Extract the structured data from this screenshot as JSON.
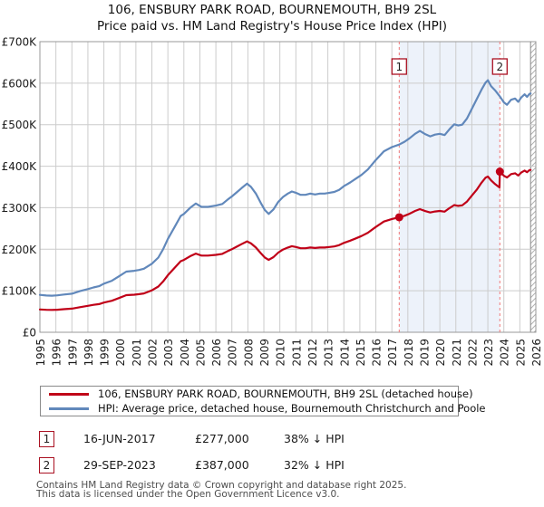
{
  "title": {
    "line1": "106, ENSBURY PARK ROAD, BOURNEMOUTH, BH9 2SL",
    "line2": "Price paid vs. HM Land Registry's House Price Index (HPI)"
  },
  "colors": {
    "property_line": "#c00018",
    "hpi_line": "#6188bb",
    "grid": "#cccccc",
    "plot_border": "#999999",
    "shaded_band": "#edf2fa",
    "dashed_marker": "#f07878",
    "marker_box_border": "#aa1122",
    "hatch_line": "#b0b0b0"
  },
  "y_axis": {
    "labels": [
      "£700K",
      "£600K",
      "£500K",
      "£400K",
      "£300K",
      "£200K",
      "£100K",
      "£0"
    ],
    "values": [
      700000,
      600000,
      500000,
      400000,
      300000,
      200000,
      100000,
      0
    ],
    "max": 700000,
    "min": 0
  },
  "x_axis": {
    "labels": [
      "1995",
      "1996",
      "1997",
      "1998",
      "1999",
      "2000",
      "2001",
      "2002",
      "2003",
      "2004",
      "2005",
      "2006",
      "2007",
      "2008",
      "2009",
      "2010",
      "2011",
      "2012",
      "2013",
      "2014",
      "2015",
      "2016",
      "2017",
      "2018",
      "2019",
      "2020",
      "2021",
      "2022",
      "2023",
      "2024",
      "2025",
      "2026"
    ],
    "start_year": 1995,
    "end_year": 2026
  },
  "legend": {
    "items": [
      {
        "label": "106, ENSBURY PARK ROAD, BOURNEMOUTH, BH9 2SL (detached house)",
        "color": "#c00018"
      },
      {
        "label": "HPI: Average price, detached house, Bournemouth Christchurch and Poole",
        "color": "#6188bb"
      }
    ]
  },
  "chart_data": {
    "type": "line",
    "x_unit": "decimal_year",
    "y_unit": "GBP",
    "xlim": [
      1995,
      2026
    ],
    "ylim": [
      0,
      700000
    ],
    "grid": true,
    "shaded_region": {
      "from": 2017.46,
      "to": 2023.75
    },
    "hatched_region": {
      "from": 2025.67,
      "to": 2026.0
    },
    "series": [
      {
        "name": "HPI: Average price, detached house, Bournemouth Christchurch and Poole",
        "color": "#6188bb",
        "points": [
          [
            1995.0,
            90000
          ],
          [
            1995.4,
            88500
          ],
          [
            1995.75,
            88000
          ],
          [
            1996.1,
            89000
          ],
          [
            1996.5,
            91000
          ],
          [
            1997.0,
            93000
          ],
          [
            1997.5,
            99000
          ],
          [
            1998.0,
            104000
          ],
          [
            1998.35,
            108000
          ],
          [
            1998.7,
            111000
          ],
          [
            1999.0,
            117000
          ],
          [
            1999.5,
            124000
          ],
          [
            2000.0,
            136000
          ],
          [
            2000.4,
            146000
          ],
          [
            2000.9,
            148000
          ],
          [
            2001.2,
            150000
          ],
          [
            2001.5,
            153000
          ],
          [
            2002.0,
            165000
          ],
          [
            2002.4,
            180000
          ],
          [
            2002.7,
            200000
          ],
          [
            2003.0,
            225000
          ],
          [
            2003.4,
            252000
          ],
          [
            2003.8,
            280000
          ],
          [
            2004.0,
            285000
          ],
          [
            2004.4,
            300000
          ],
          [
            2004.75,
            310000
          ],
          [
            2005.1,
            302000
          ],
          [
            2005.5,
            302000
          ],
          [
            2006.0,
            305000
          ],
          [
            2006.4,
            309000
          ],
          [
            2006.75,
            320000
          ],
          [
            2007.0,
            327000
          ],
          [
            2007.3,
            337000
          ],
          [
            2007.6,
            347000
          ],
          [
            2007.95,
            358000
          ],
          [
            2008.2,
            350000
          ],
          [
            2008.5,
            334000
          ],
          [
            2008.8,
            312000
          ],
          [
            2009.05,
            295000
          ],
          [
            2009.3,
            285000
          ],
          [
            2009.6,
            296000
          ],
          [
            2009.9,
            314000
          ],
          [
            2010.2,
            326000
          ],
          [
            2010.5,
            334000
          ],
          [
            2010.75,
            339000
          ],
          [
            2011.0,
            336000
          ],
          [
            2011.3,
            331000
          ],
          [
            2011.6,
            331000
          ],
          [
            2011.9,
            334000
          ],
          [
            2012.2,
            332000
          ],
          [
            2012.5,
            334000
          ],
          [
            2012.8,
            334000
          ],
          [
            2013.1,
            336000
          ],
          [
            2013.4,
            338000
          ],
          [
            2013.7,
            343000
          ],
          [
            2014.0,
            352000
          ],
          [
            2014.4,
            361000
          ],
          [
            2014.75,
            370000
          ],
          [
            2015.1,
            379000
          ],
          [
            2015.5,
            392000
          ],
          [
            2016.0,
            415000
          ],
          [
            2016.5,
            436000
          ],
          [
            2017.0,
            446000
          ],
          [
            2017.46,
            452000
          ],
          [
            2017.8,
            459000
          ],
          [
            2018.1,
            467000
          ],
          [
            2018.45,
            478000
          ],
          [
            2018.75,
            485000
          ],
          [
            2019.1,
            477000
          ],
          [
            2019.4,
            472000
          ],
          [
            2019.7,
            476000
          ],
          [
            2020.0,
            478000
          ],
          [
            2020.3,
            475000
          ],
          [
            2020.6,
            489000
          ],
          [
            2020.9,
            501000
          ],
          [
            2021.15,
            498000
          ],
          [
            2021.4,
            500000
          ],
          [
            2021.7,
            515000
          ],
          [
            2022.0,
            538000
          ],
          [
            2022.3,
            561000
          ],
          [
            2022.6,
            584000
          ],
          [
            2022.85,
            601000
          ],
          [
            2023.0,
            607000
          ],
          [
            2023.2,
            593000
          ],
          [
            2023.45,
            583000
          ],
          [
            2023.65,
            573000
          ],
          [
            2023.75,
            568000
          ],
          [
            2024.0,
            554000
          ],
          [
            2024.2,
            548000
          ],
          [
            2024.45,
            560000
          ],
          [
            2024.7,
            563000
          ],
          [
            2024.9,
            555000
          ],
          [
            2025.1,
            566000
          ],
          [
            2025.3,
            573000
          ],
          [
            2025.45,
            567000
          ],
          [
            2025.6,
            574000
          ],
          [
            2025.67,
            575000
          ]
        ]
      },
      {
        "name": "106, ENSBURY PARK ROAD, BOURNEMOUTH, BH9 2SL (detached house)",
        "color": "#c00018",
        "points": [
          [
            1995.0,
            55000
          ],
          [
            1995.4,
            54000
          ],
          [
            1995.75,
            53800
          ],
          [
            1996.1,
            54400
          ],
          [
            1996.5,
            55600
          ],
          [
            1997.0,
            56900
          ],
          [
            1997.5,
            60500
          ],
          [
            1998.0,
            63600
          ],
          [
            1998.35,
            66000
          ],
          [
            1998.7,
            67900
          ],
          [
            1999.0,
            71500
          ],
          [
            1999.5,
            75800
          ],
          [
            2000.0,
            83200
          ],
          [
            2000.4,
            89300
          ],
          [
            2000.9,
            90500
          ],
          [
            2001.2,
            91700
          ],
          [
            2001.5,
            93500
          ],
          [
            2002.0,
            100900
          ],
          [
            2002.4,
            110100
          ],
          [
            2002.7,
            122300
          ],
          [
            2003.0,
            137600
          ],
          [
            2003.4,
            154100
          ],
          [
            2003.8,
            171200
          ],
          [
            2004.0,
            174200
          ],
          [
            2004.4,
            183400
          ],
          [
            2004.75,
            189500
          ],
          [
            2005.1,
            184600
          ],
          [
            2005.5,
            184600
          ],
          [
            2006.0,
            186500
          ],
          [
            2006.4,
            188900
          ],
          [
            2006.75,
            195600
          ],
          [
            2007.0,
            199900
          ],
          [
            2007.3,
            206000
          ],
          [
            2007.6,
            212200
          ],
          [
            2007.95,
            218900
          ],
          [
            2008.2,
            214000
          ],
          [
            2008.5,
            204200
          ],
          [
            2008.8,
            190800
          ],
          [
            2009.05,
            180400
          ],
          [
            2009.3,
            174200
          ],
          [
            2009.6,
            181000
          ],
          [
            2009.9,
            192000
          ],
          [
            2010.2,
            199300
          ],
          [
            2010.5,
            204200
          ],
          [
            2010.75,
            207300
          ],
          [
            2011.0,
            205400
          ],
          [
            2011.3,
            202400
          ],
          [
            2011.6,
            202400
          ],
          [
            2011.9,
            204200
          ],
          [
            2012.2,
            203000
          ],
          [
            2012.5,
            204200
          ],
          [
            2012.8,
            204200
          ],
          [
            2013.1,
            205400
          ],
          [
            2013.4,
            206700
          ],
          [
            2013.7,
            209700
          ],
          [
            2014.0,
            215200
          ],
          [
            2014.4,
            220700
          ],
          [
            2014.75,
            226200
          ],
          [
            2015.1,
            231700
          ],
          [
            2015.5,
            239700
          ],
          [
            2016.0,
            253700
          ],
          [
            2016.5,
            266600
          ],
          [
            2017.0,
            272700
          ],
          [
            2017.46,
            277000
          ],
          [
            2017.8,
            280600
          ],
          [
            2018.1,
            285500
          ],
          [
            2018.45,
            292200
          ],
          [
            2018.75,
            296500
          ],
          [
            2019.1,
            291700
          ],
          [
            2019.4,
            288600
          ],
          [
            2019.7,
            291000
          ],
          [
            2020.0,
            292200
          ],
          [
            2020.3,
            290400
          ],
          [
            2020.6,
            299000
          ],
          [
            2020.9,
            306300
          ],
          [
            2021.15,
            304500
          ],
          [
            2021.4,
            305700
          ],
          [
            2021.7,
            314900
          ],
          [
            2022.0,
            329000
          ],
          [
            2022.3,
            343000
          ],
          [
            2022.6,
            360000
          ],
          [
            2022.85,
            372000
          ],
          [
            2023.0,
            375000
          ],
          [
            2023.2,
            366000
          ],
          [
            2023.45,
            357000
          ],
          [
            2023.65,
            351000
          ],
          [
            2023.73,
            349000
          ],
          [
            2023.75,
            387000
          ],
          [
            2024.0,
            377000
          ],
          [
            2024.2,
            373000
          ],
          [
            2024.45,
            381000
          ],
          [
            2024.7,
            383000
          ],
          [
            2024.9,
            377500
          ],
          [
            2025.1,
            385000
          ],
          [
            2025.3,
            389500
          ],
          [
            2025.45,
            385500
          ],
          [
            2025.6,
            390500
          ],
          [
            2025.67,
            391000
          ]
        ]
      }
    ],
    "sale_markers": [
      {
        "num": "1",
        "date": "16-JUN-2017",
        "year": 2017.46,
        "price": 277000,
        "vs_hpi": "38% ↓ HPI"
      },
      {
        "num": "2",
        "date": "29-SEP-2023",
        "year": 2023.75,
        "price": 387000,
        "vs_hpi": "32% ↓ HPI"
      }
    ]
  },
  "annotations": {
    "rows": [
      {
        "num": "1",
        "date": "16-JUN-2017",
        "price": "£277,000",
        "hpi": "38% ↓ HPI"
      },
      {
        "num": "2",
        "date": "29-SEP-2023",
        "price": "£387,000",
        "hpi": "32% ↓ HPI"
      }
    ]
  },
  "footer": {
    "line1": "Contains HM Land Registry data © Crown copyright and database right 2025.",
    "line2": "This data is licensed under the Open Government Licence v3.0."
  }
}
